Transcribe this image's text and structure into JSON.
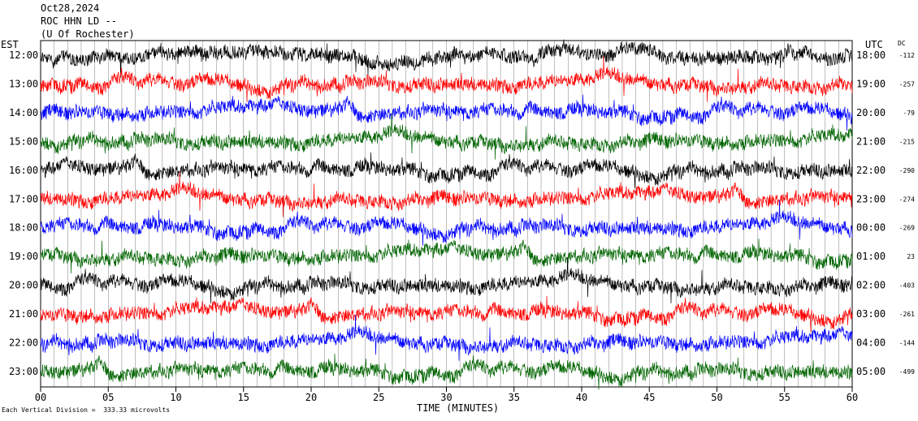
{
  "header": {
    "date": "Oct28,2024",
    "station": "ROC HHN LD --",
    "location": "(U Of Rochester)"
  },
  "left_axis_label": "EST",
  "right_axis_label": "UTC",
  "dc_label": "DC",
  "footer_scale": "Each Vertical Division =  333.33 microvolts",
  "chart_data": {
    "type": "line",
    "title": "",
    "xlabel": "TIME (MINUTES)",
    "x_ticks": [
      "00",
      "05",
      "10",
      "15",
      "20",
      "25",
      "30",
      "35",
      "40",
      "45",
      "50",
      "55",
      "60"
    ],
    "xlim": [
      0,
      60
    ],
    "grid": true,
    "series_colors": [
      "#000000",
      "#ff0000",
      "#0000ff",
      "#006400"
    ],
    "rows": [
      {
        "est": "12:00",
        "utc": "18:00",
        "dc": "-112",
        "color": "#000000"
      },
      {
        "est": "13:00",
        "utc": "19:00",
        "dc": "-257",
        "color": "#ff0000"
      },
      {
        "est": "14:00",
        "utc": "20:00",
        "dc": "-79",
        "color": "#0000ff"
      },
      {
        "est": "15:00",
        "utc": "21:00",
        "dc": "-215",
        "color": "#006400"
      },
      {
        "est": "16:00",
        "utc": "22:00",
        "dc": "-290",
        "color": "#000000"
      },
      {
        "est": "17:00",
        "utc": "23:00",
        "dc": "-274",
        "color": "#ff0000"
      },
      {
        "est": "18:00",
        "utc": "00:00",
        "dc": "-269",
        "color": "#0000ff"
      },
      {
        "est": "19:00",
        "utc": "01:00",
        "dc": "23",
        "color": "#006400"
      },
      {
        "est": "20:00",
        "utc": "02:00",
        "dc": "-403",
        "color": "#000000"
      },
      {
        "est": "21:00",
        "utc": "03:00",
        "dc": "-261",
        "color": "#ff0000"
      },
      {
        "est": "22:00",
        "utc": "04:00",
        "dc": "-144",
        "color": "#0000ff"
      },
      {
        "est": "23:00",
        "utc": "05:00",
        "dc": "-499",
        "color": "#006400"
      }
    ]
  }
}
